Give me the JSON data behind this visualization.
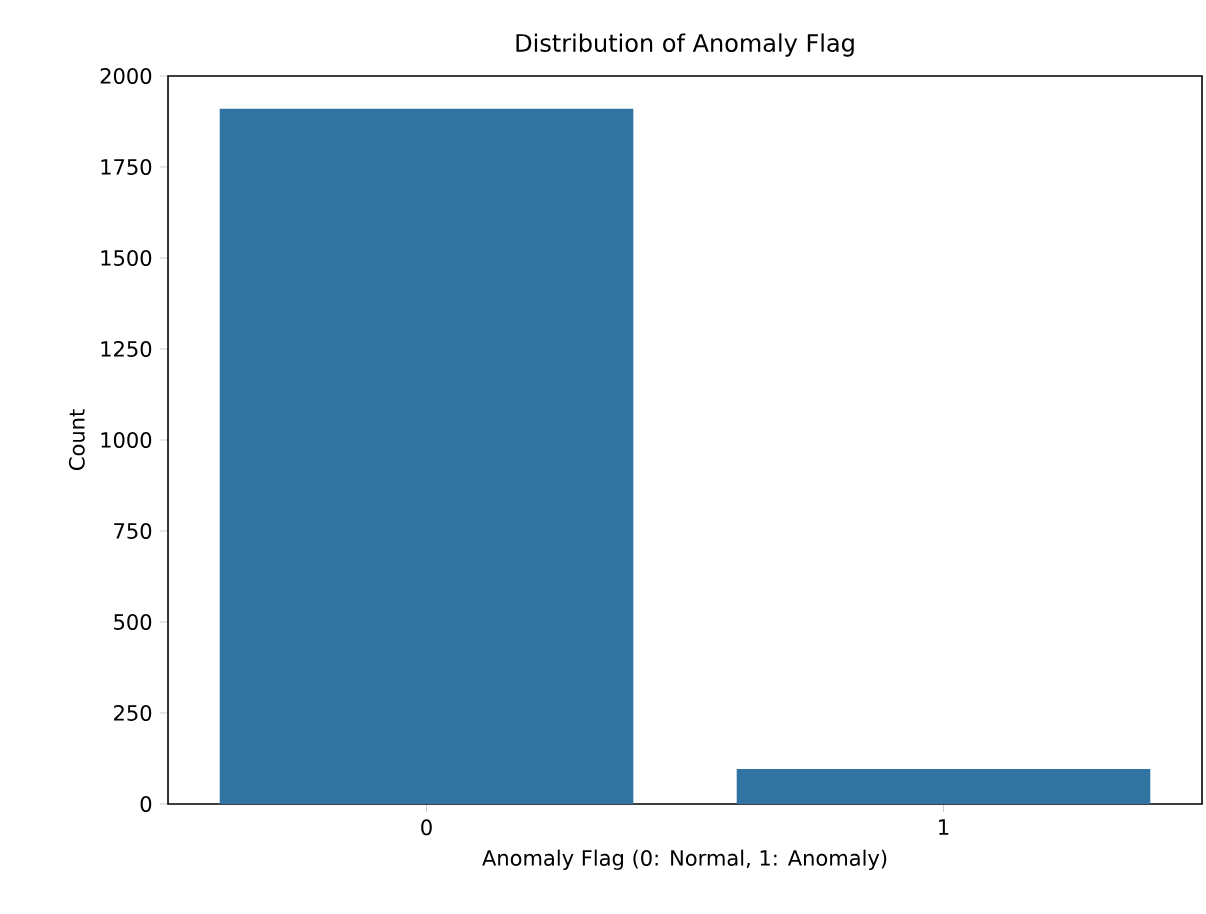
{
  "chart_data": {
    "type": "bar",
    "title": "Distribution of Anomaly Flag",
    "xlabel": "Anomaly Flag (0: Normal, 1: Anomaly)",
    "ylabel": "Count",
    "categories": [
      "0",
      "1"
    ],
    "values": [
      1910,
      96
    ],
    "color": "#3274a1",
    "ylim": [
      0,
      2000
    ],
    "yticks": [
      0,
      250,
      500,
      750,
      1000,
      1250,
      1500,
      1750,
      2000
    ]
  }
}
